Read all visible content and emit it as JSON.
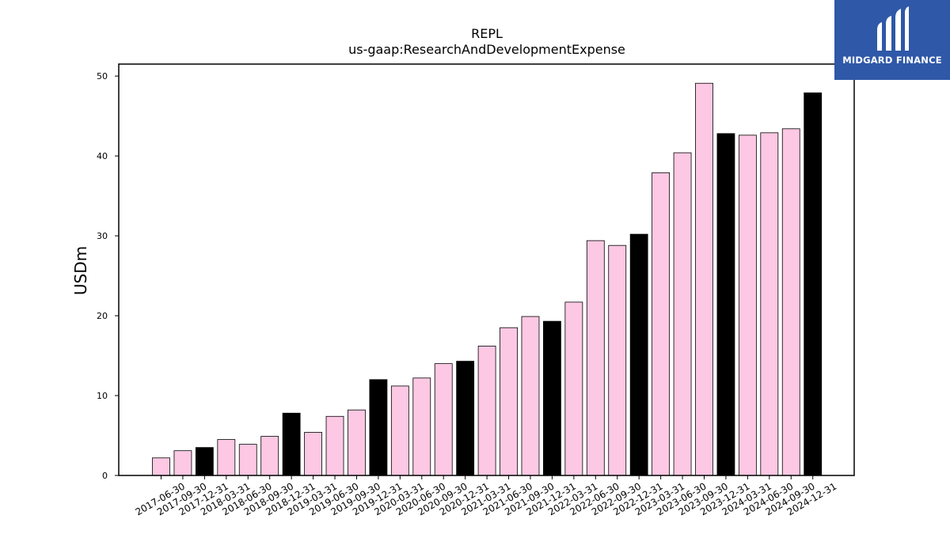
{
  "brand": {
    "name": "MIDGARD FINANCE",
    "color": "#2f58a8"
  },
  "chart_data": {
    "type": "bar",
    "title": "REPL",
    "subtitle": "us-gaap:ResearchAndDevelopmentExpense",
    "xlabel": "",
    "ylabel": "USDm",
    "ylim": [
      0,
      51.5
    ],
    "yticks": [
      0,
      10,
      20,
      30,
      40,
      50
    ],
    "grid": false,
    "legend": "none",
    "colors": {
      "quarter": "#fcc8e3",
      "year_end": "#000000",
      "edge": "#000000"
    },
    "categories": [
      "2017-06-30",
      "2017-09-30",
      "2017-12-31",
      "2018-03-31",
      "2018-06-30",
      "2018-09-30",
      "2018-12-31",
      "2019-03-31",
      "2019-06-30",
      "2019-09-30",
      "2019-12-31",
      "2020-03-31",
      "2020-06-30",
      "2020-09-30",
      "2020-12-31",
      "2021-03-31",
      "2021-06-30",
      "2021-09-30",
      "2021-12-31",
      "2022-03-31",
      "2022-06-30",
      "2022-09-30",
      "2022-12-31",
      "2023-03-31",
      "2023-06-30",
      "2023-09-30",
      "2023-12-31",
      "2024-03-31",
      "2024-06-30",
      "2024-09-30",
      "2024-12-31"
    ],
    "values": [
      2.2,
      3.1,
      3.5,
      4.5,
      3.9,
      4.9,
      7.8,
      5.4,
      7.4,
      8.2,
      12.0,
      11.2,
      12.2,
      14.0,
      14.3,
      16.2,
      18.5,
      19.9,
      19.3,
      21.7,
      29.4,
      28.8,
      30.2,
      37.9,
      40.4,
      49.1,
      42.8,
      42.6,
      42.9,
      43.4,
      47.9
    ]
  }
}
